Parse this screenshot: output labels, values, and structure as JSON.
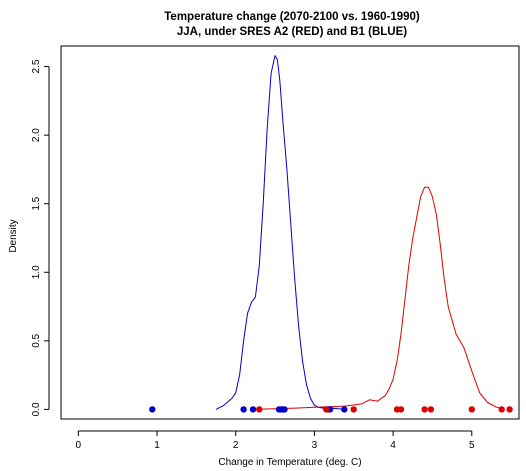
{
  "chart_data": {
    "type": "line",
    "title": "Temperature change (2070-2100 vs. 1960-1990)",
    "subtitle": "JJA, under SRES A2 (RED) and B1 (BLUE)",
    "xlabel": "Change in Temperature (deg. C)",
    "ylabel": "Density",
    "xlim": [
      -0.22,
      5.6
    ],
    "ylim": [
      -0.07,
      2.65
    ],
    "x_ticks": [
      0,
      1,
      2,
      3,
      4,
      5
    ],
    "y_ticks": [
      0.0,
      0.5,
      1.0,
      1.5,
      2.0,
      2.5
    ],
    "x_tick_labels": [
      "0",
      "1",
      "2",
      "3",
      "4",
      "5"
    ],
    "y_tick_labels": [
      "0.0",
      "0.5",
      "1.0",
      "1.5",
      "2.0",
      "2.5"
    ],
    "grid": false,
    "series": [
      {
        "color": "#0000cc",
        "x": [
          1.75,
          1.85,
          1.95,
          2.0,
          2.05,
          2.1,
          2.15,
          2.2,
          2.25,
          2.3,
          2.35,
          2.4,
          2.45,
          2.5,
          2.53,
          2.56,
          2.6,
          2.65,
          2.7,
          2.75,
          2.8,
          2.85,
          2.9,
          2.95,
          3.0,
          3.05,
          3.1,
          3.2,
          3.3,
          3.4
        ],
        "y": [
          0.0,
          0.03,
          0.08,
          0.12,
          0.25,
          0.5,
          0.7,
          0.78,
          0.82,
          1.05,
          1.5,
          2.05,
          2.45,
          2.58,
          2.55,
          2.4,
          2.1,
          1.75,
          1.35,
          0.95,
          0.6,
          0.35,
          0.18,
          0.08,
          0.03,
          0.015,
          0.01,
          0.01,
          0.005,
          0.0
        ]
      },
      {
        "color": "#dd0000",
        "x": [
          2.2,
          2.5,
          2.8,
          3.0,
          3.2,
          3.4,
          3.6,
          3.7,
          3.8,
          3.9,
          3.95,
          4.0,
          4.05,
          4.1,
          4.15,
          4.2,
          4.25,
          4.3,
          4.35,
          4.4,
          4.45,
          4.5,
          4.55,
          4.6,
          4.65,
          4.7,
          4.8,
          4.9,
          5.0,
          5.1,
          5.2,
          5.3,
          5.4
        ],
        "y": [
          0.0,
          0.005,
          0.01,
          0.015,
          0.02,
          0.025,
          0.04,
          0.07,
          0.06,
          0.1,
          0.15,
          0.22,
          0.35,
          0.55,
          0.8,
          1.05,
          1.25,
          1.4,
          1.55,
          1.62,
          1.62,
          1.55,
          1.42,
          1.2,
          0.95,
          0.75,
          0.55,
          0.45,
          0.28,
          0.12,
          0.05,
          0.02,
          0.0
        ]
      }
    ],
    "points": [
      {
        "color": "#0000cc",
        "x": [
          0.94,
          2.1,
          2.22,
          2.55,
          2.58,
          2.6,
          2.62,
          3.17,
          3.2,
          3.38
        ]
      },
      {
        "color": "#dd0000",
        "x": [
          2.3,
          3.15,
          3.5,
          4.05,
          4.1,
          4.4,
          4.48,
          5.0,
          5.38,
          5.48
        ]
      }
    ]
  }
}
